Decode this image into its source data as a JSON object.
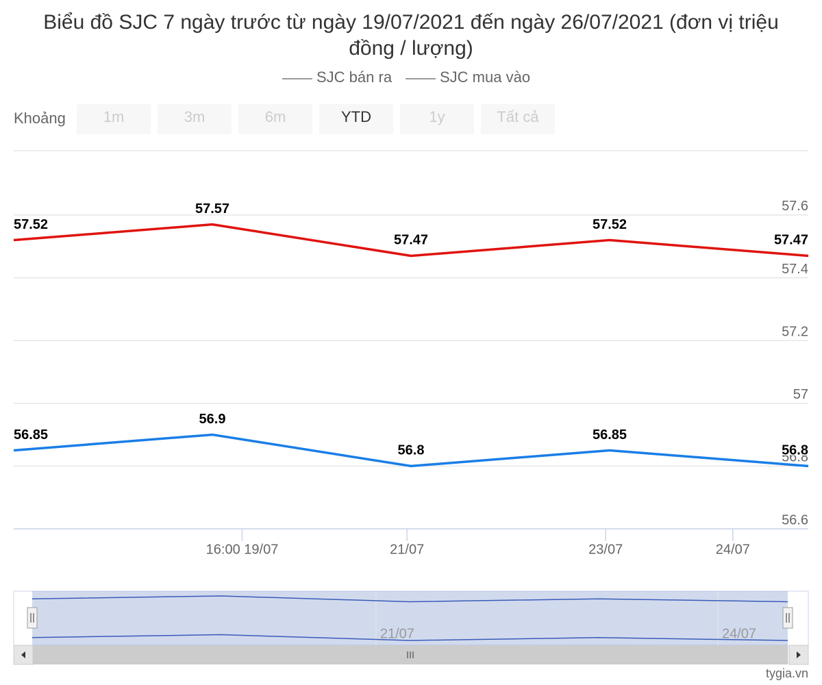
{
  "chart_data": {
    "type": "line",
    "title": "Biểu đồ SJC 7 ngày trước từ ngày 19/07/2021 đến ngày 26/07/2021 (đơn vị triệu đồng / lượng)",
    "categories": [
      null,
      null,
      null,
      null,
      null
    ],
    "series": [
      {
        "name": "SJC bán ra",
        "color": "#e0130f",
        "values": [
          57.52,
          57.57,
          57.47,
          57.52,
          57.47
        ]
      },
      {
        "name": "SJC mua vào",
        "color": "#1a7ee6",
        "values": [
          56.85,
          56.9,
          56.8,
          56.85,
          56.8
        ]
      }
    ],
    "xlim": [
      0,
      4
    ],
    "xticks": [
      {
        "value": 1.15,
        "label": "16:00 19/07"
      },
      {
        "value": 1.98,
        "label": "21/07"
      },
      {
        "value": 2.98,
        "label": "23/07"
      },
      {
        "value": 3.62,
        "label": "24/07"
      }
    ],
    "ylim": [
      56.6,
      57.805
    ],
    "yticks": [
      56.6,
      56.8,
      57,
      57.2,
      57.4,
      57.6
    ],
    "grid": true,
    "legend": "top",
    "range_selector": {
      "label": "Khoảng",
      "buttons": [
        "1m",
        "3m",
        "6m",
        "YTD",
        "1y",
        "Tất cả"
      ],
      "active_button": 3
    },
    "navigator": {
      "xticks": [
        {
          "value": 1.82,
          "label": "21/07"
        },
        {
          "value": 3.63,
          "label": "24/07"
        }
      ]
    },
    "credits": "tygia.vn"
  }
}
